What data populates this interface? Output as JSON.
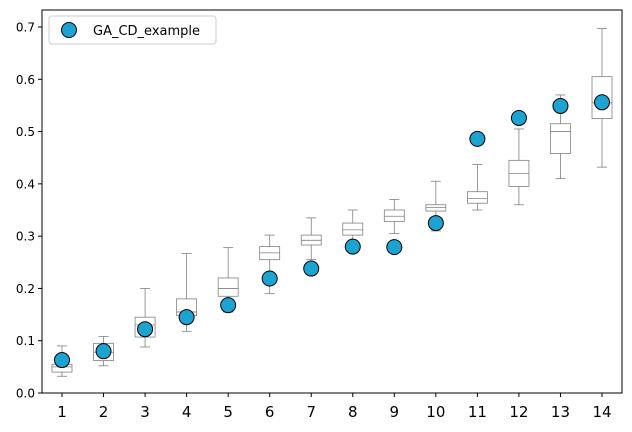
{
  "chart_data": {
    "type": "box+scatter",
    "title": "",
    "xlabel": "",
    "ylabel": "",
    "categories": [
      "1",
      "2",
      "3",
      "4",
      "5",
      "6",
      "7",
      "8",
      "9",
      "10",
      "11",
      "12",
      "13",
      "14"
    ],
    "ylim": [
      0,
      0.73
    ],
    "yticks": [
      0.0,
      0.1,
      0.2,
      0.3,
      0.4,
      0.5,
      0.6,
      0.7
    ],
    "ytick_labels": [
      "0.0",
      "0.1",
      "0.2",
      "0.3",
      "0.4",
      "0.5",
      "0.6",
      "0.7"
    ],
    "grid": false,
    "legend": {
      "placement": "top-left",
      "entries": [
        "GA_CD_example"
      ]
    },
    "boxes": [
      {
        "min": 0.032,
        "q1": 0.04,
        "median": 0.05,
        "q3": 0.055,
        "max": 0.09
      },
      {
        "min": 0.052,
        "q1": 0.062,
        "median": 0.078,
        "q3": 0.095,
        "max": 0.108
      },
      {
        "min": 0.088,
        "q1": 0.107,
        "median": 0.13,
        "q3": 0.145,
        "max": 0.2
      },
      {
        "min": 0.118,
        "q1": 0.148,
        "median": 0.155,
        "q3": 0.18,
        "max": 0.267
      },
      {
        "min": 0.155,
        "q1": 0.185,
        "median": 0.2,
        "q3": 0.22,
        "max": 0.278
      },
      {
        "min": 0.19,
        "q1": 0.255,
        "median": 0.268,
        "q3": 0.28,
        "max": 0.302
      },
      {
        "min": 0.255,
        "q1": 0.283,
        "median": 0.292,
        "q3": 0.302,
        "max": 0.335
      },
      {
        "min": 0.285,
        "q1": 0.302,
        "median": 0.312,
        "q3": 0.325,
        "max": 0.35
      },
      {
        "min": 0.305,
        "q1": 0.328,
        "median": 0.338,
        "q3": 0.35,
        "max": 0.37
      },
      {
        "min": 0.31,
        "q1": 0.348,
        "median": 0.355,
        "q3": 0.36,
        "max": 0.405
      },
      {
        "min": 0.35,
        "q1": 0.363,
        "median": 0.372,
        "q3": 0.385,
        "max": 0.437
      },
      {
        "min": 0.36,
        "q1": 0.395,
        "median": 0.42,
        "q3": 0.445,
        "max": 0.505
      },
      {
        "min": 0.41,
        "q1": 0.458,
        "median": 0.5,
        "q3": 0.515,
        "max": 0.57
      },
      {
        "min": 0.432,
        "q1": 0.525,
        "median": 0.555,
        "q3": 0.605,
        "max": 0.697
      }
    ],
    "series": [
      {
        "name": "GA_CD_example",
        "values": [
          0.063,
          0.08,
          0.122,
          0.145,
          0.168,
          0.219,
          0.238,
          0.28,
          0.279,
          0.325,
          0.486,
          0.526,
          0.549,
          0.556
        ]
      }
    ],
    "colors": {
      "marker_fill": "#1da3d1",
      "marker_edge": "#000000",
      "box_line": "#808080",
      "axis": "#000000",
      "legend_border": "#cccccc"
    }
  }
}
